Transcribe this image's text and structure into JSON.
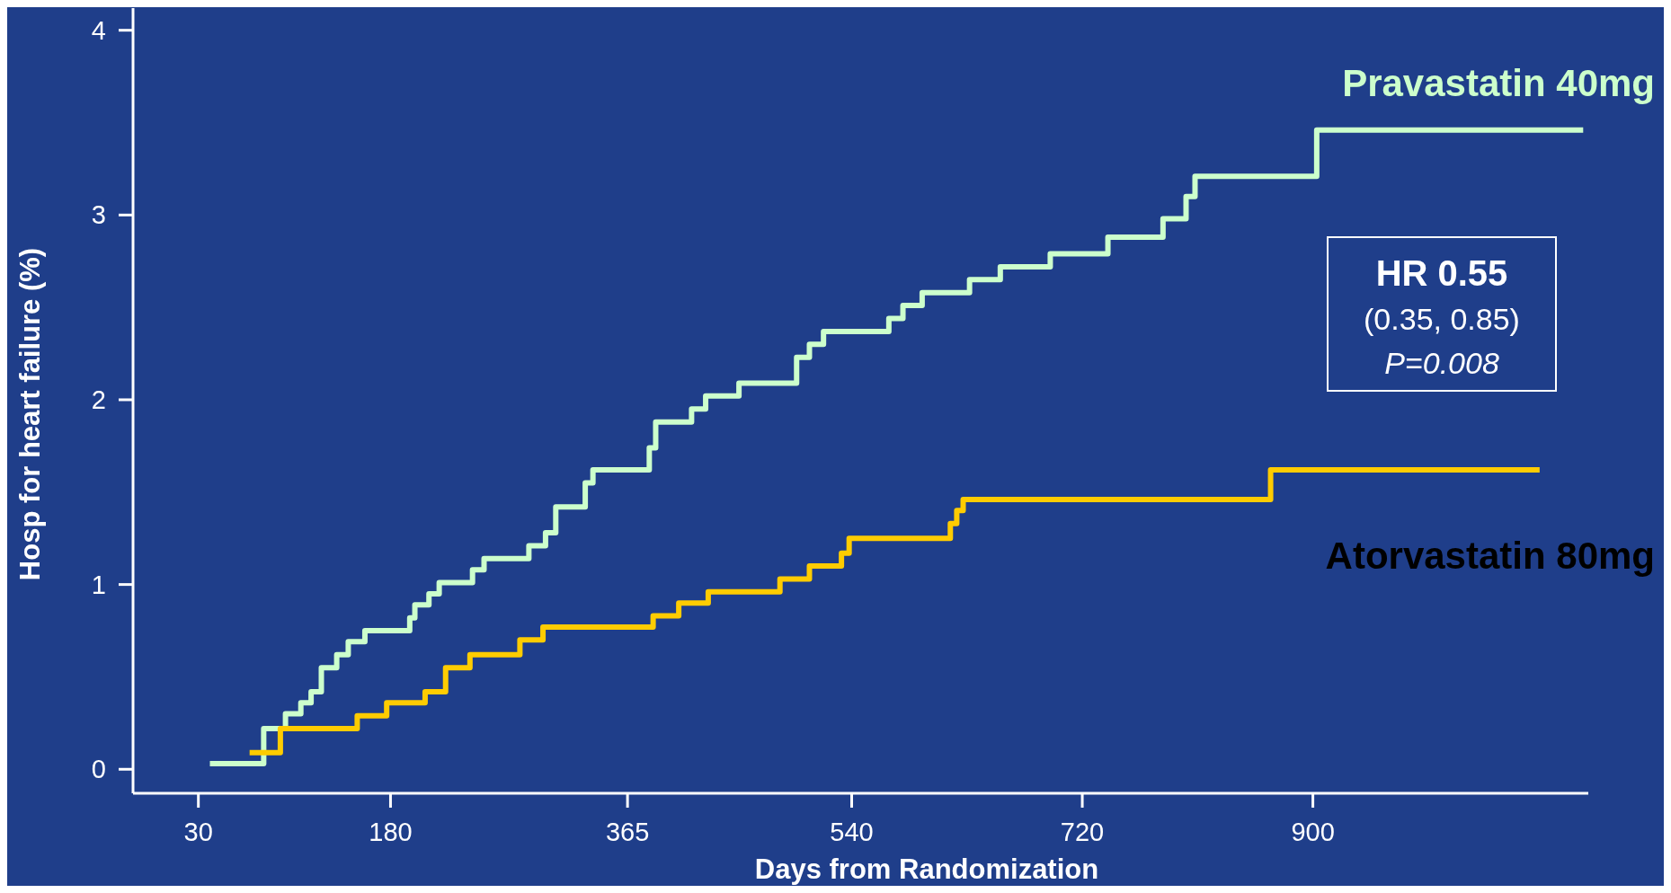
{
  "chart_data": {
    "type": "step",
    "xlabel": "Days from Randomization",
    "ylabel": "Hosp for heart failure (%)",
    "xlim": [
      -21,
      1115
    ],
    "ylim": [
      -0.13,
      4.12
    ],
    "xticks": [
      30,
      180,
      365,
      540,
      720,
      900
    ],
    "yticks": [
      0,
      1,
      2,
      3,
      4
    ],
    "grid": false,
    "annotations": [
      "HR 0.55",
      "(0.35, 0.85)",
      "P=0.008"
    ],
    "series": [
      {
        "name": "Pravastatin 40mg",
        "color": "#ccffcc",
        "x": [
          39,
          81,
          98,
          110,
          118,
          126,
          138,
          147,
          160,
          195,
          199,
          210,
          218,
          244,
          253,
          288,
          301,
          309,
          332,
          338,
          382,
          387,
          415,
          426,
          452,
          497,
          507,
          518,
          569,
          580,
          595,
          632,
          656,
          695,
          740,
          783,
          801,
          808,
          903,
          1111
        ],
        "values": [
          0.03,
          0.22,
          0.3,
          0.36,
          0.42,
          0.55,
          0.62,
          0.69,
          0.75,
          0.82,
          0.89,
          0.95,
          1.01,
          1.08,
          1.14,
          1.21,
          1.28,
          1.42,
          1.55,
          1.62,
          1.74,
          1.88,
          1.95,
          2.02,
          2.09,
          2.23,
          2.3,
          2.37,
          2.44,
          2.51,
          2.58,
          2.65,
          2.72,
          2.79,
          2.88,
          2.98,
          3.1,
          3.21,
          3.46,
          3.46
        ]
      },
      {
        "name": "Atorvastatin 80mg",
        "color": "#ffcc00",
        "x": [
          70,
          94,
          154,
          177,
          207,
          223,
          242,
          281,
          299,
          385,
          405,
          428,
          484,
          507,
          532,
          538,
          617,
          622,
          627,
          867,
          1077
        ],
        "values": [
          0.09,
          0.22,
          0.29,
          0.36,
          0.42,
          0.55,
          0.62,
          0.7,
          0.77,
          0.83,
          0.9,
          0.96,
          1.03,
          1.1,
          1.17,
          1.25,
          1.33,
          1.4,
          1.46,
          1.62,
          1.62
        ]
      }
    ]
  }
}
